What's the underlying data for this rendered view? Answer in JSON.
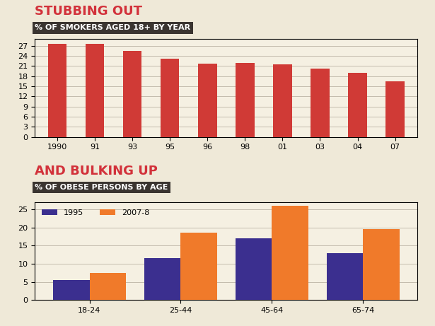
{
  "chart_data": [
    {
      "type": "bar",
      "title": "STUBBING OUT",
      "subtitle": "% OF SMOKERS AGED 18+ BY YEAR",
      "categories": [
        "1990",
        "91",
        "93",
        "95",
        "96",
        "98",
        "01",
        "03",
        "04",
        "07"
      ],
      "values": [
        27.5,
        27.7,
        25.5,
        23.2,
        21.7,
        22,
        21.6,
        20.3,
        18.9,
        16.5
      ],
      "color": "#d03a36",
      "ylim": [
        0,
        29
      ],
      "yticks": [
        0,
        3,
        6,
        9,
        12,
        15,
        18,
        21,
        24,
        27
      ],
      "grid": true
    },
    {
      "type": "bar",
      "title": "AND BULKING UP",
      "subtitle": "% OF OBESE PERSONS BY AGE",
      "categories": [
        "18-24",
        "25-44",
        "45-64",
        "65-74"
      ],
      "series": [
        {
          "name": "1995",
          "color": "#3b2f8f",
          "values": [
            5.5,
            11.5,
            17,
            13
          ]
        },
        {
          "name": "2007-8",
          "color": "#f07a2a",
          "values": [
            7.5,
            18.5,
            26,
            19.5
          ]
        }
      ],
      "ylim": [
        0,
        27
      ],
      "yticks": [
        0,
        5,
        10,
        15,
        20,
        25
      ],
      "grid": true,
      "legend": "upper left"
    }
  ]
}
